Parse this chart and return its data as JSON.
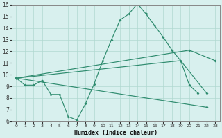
{
  "xlabel": "Humidex (Indice chaleur)",
  "color": "#2e8b6e",
  "bg_color": "#d8f0ee",
  "grid_color": "#b0d8d0",
  "ylim": [
    6,
    16
  ],
  "xlim": [
    -0.5,
    23.5
  ],
  "yticks": [
    6,
    7,
    8,
    9,
    10,
    11,
    12,
    13,
    14,
    15,
    16
  ],
  "xticks": [
    0,
    1,
    2,
    3,
    4,
    5,
    6,
    7,
    8,
    9,
    10,
    11,
    12,
    13,
    14,
    15,
    16,
    17,
    18,
    19,
    20,
    21,
    22,
    23
  ],
  "lines": [
    {
      "x": [
        0,
        1,
        2,
        3,
        4,
        5,
        6,
        7,
        8,
        9,
        10,
        11,
        12,
        13,
        14,
        15,
        16,
        17,
        18,
        19,
        20,
        21
      ],
      "y": [
        9.7,
        9.1,
        9.1,
        9.5,
        8.3,
        8.3,
        6.4,
        6.1,
        7.5,
        9.2,
        11.2,
        13.0,
        14.7,
        15.2,
        16.1,
        15.2,
        14.2,
        13.2,
        12.1,
        11.2,
        9.1,
        8.4
      ]
    },
    {
      "x": [
        0,
        20,
        23
      ],
      "y": [
        9.7,
        12.1,
        11.2
      ]
    },
    {
      "x": [
        0,
        19,
        22
      ],
      "y": [
        9.7,
        11.2,
        8.4
      ]
    },
    {
      "x": [
        0,
        22
      ],
      "y": [
        9.7,
        7.2
      ]
    }
  ]
}
